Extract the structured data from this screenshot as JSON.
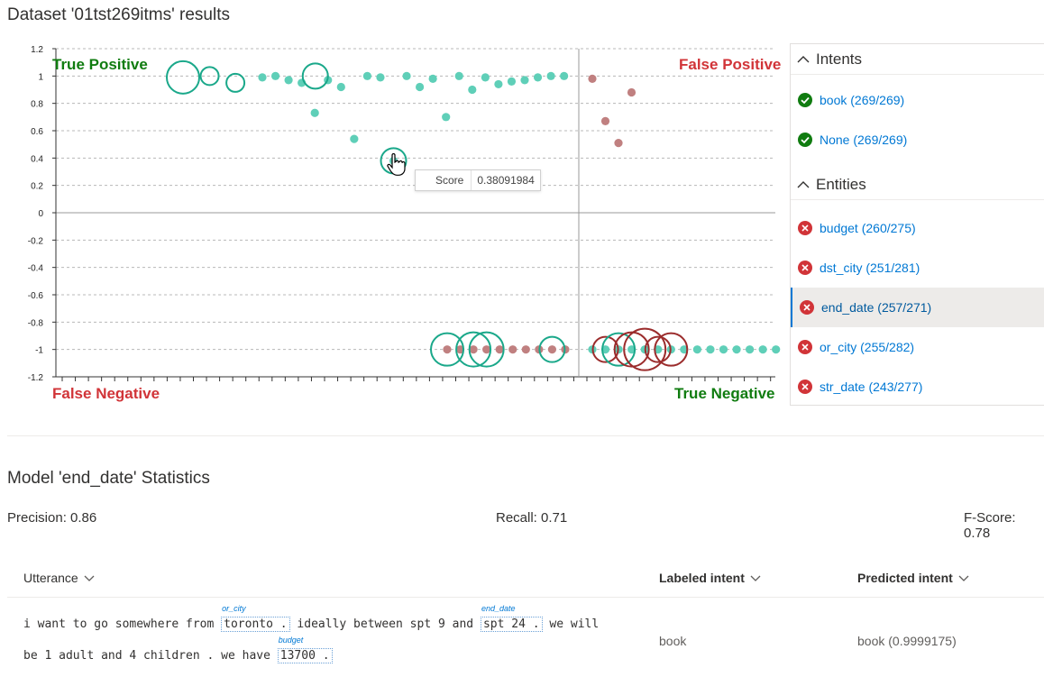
{
  "title": "Dataset '01tst269itms' results",
  "chart_data": {
    "type": "scatter",
    "title": "",
    "ylim": [
      -1.2,
      1.2
    ],
    "yticks": [
      "1.2",
      "1",
      "0.8",
      "0.6",
      "0.4",
      "0.2",
      "0",
      "-0.2",
      "-0.4",
      "-0.6",
      "-0.8",
      "-1",
      "-1.2"
    ],
    "grid": true,
    "colors": {
      "correct": "#5fcfb8",
      "wrong": "#c08080",
      "ring_correct": "#1aa88a",
      "ring_wrong": "#9b2c2c"
    },
    "quadrants": {
      "true_positive": "True Positive",
      "false_positive": "False Positive",
      "false_negative": "False Negative",
      "true_negative": "True Negative"
    },
    "dots": [
      {
        "x": 1,
        "y": 0.99,
        "c": "correct"
      },
      {
        "x": 2,
        "y": 1.0,
        "c": "correct"
      },
      {
        "x": 3,
        "y": 0.97,
        "c": "correct"
      },
      {
        "x": 4,
        "y": 0.95,
        "c": "correct"
      },
      {
        "x": 5,
        "y": 0.73,
        "c": "correct"
      },
      {
        "x": 6,
        "y": 0.97,
        "c": "correct"
      },
      {
        "x": 7,
        "y": 0.92,
        "c": "correct"
      },
      {
        "x": 8,
        "y": 0.54,
        "c": "correct"
      },
      {
        "x": 9,
        "y": 1.0,
        "c": "correct"
      },
      {
        "x": 10,
        "y": 0.99,
        "c": "correct"
      },
      {
        "x": 11,
        "y": 0.38,
        "c": "correct"
      },
      {
        "x": 12,
        "y": 1.0,
        "c": "correct"
      },
      {
        "x": 13,
        "y": 0.92,
        "c": "correct"
      },
      {
        "x": 14,
        "y": 0.98,
        "c": "correct"
      },
      {
        "x": 15,
        "y": 0.7,
        "c": "correct"
      },
      {
        "x": 16,
        "y": 1.0,
        "c": "correct"
      },
      {
        "x": 17,
        "y": 0.9,
        "c": "correct"
      },
      {
        "x": 18,
        "y": 0.99,
        "c": "correct"
      },
      {
        "x": 19,
        "y": 0.94,
        "c": "correct"
      },
      {
        "x": 20,
        "y": 0.96,
        "c": "correct"
      },
      {
        "x": 21,
        "y": 0.97,
        "c": "correct"
      },
      {
        "x": 22,
        "y": 0.99,
        "c": "correct"
      },
      {
        "x": 23,
        "y": 1.0,
        "c": "correct"
      },
      {
        "x": 24,
        "y": 1.0,
        "c": "correct"
      },
      {
        "x": 25,
        "y": 0.98,
        "c": "wrong"
      },
      {
        "x": 26,
        "y": 0.67,
        "c": "wrong"
      },
      {
        "x": 27,
        "y": 0.51,
        "c": "wrong"
      },
      {
        "x": 28,
        "y": 0.88,
        "c": "wrong"
      },
      {
        "x": 29,
        "y": -1,
        "c": "wrong"
      },
      {
        "x": 30,
        "y": -1,
        "c": "wrong"
      },
      {
        "x": 31,
        "y": -1,
        "c": "wrong"
      },
      {
        "x": 32,
        "y": -1,
        "c": "wrong"
      },
      {
        "x": 33,
        "y": -1,
        "c": "wrong"
      },
      {
        "x": 34,
        "y": -1,
        "c": "wrong"
      },
      {
        "x": 35,
        "y": -1,
        "c": "wrong"
      },
      {
        "x": 36,
        "y": -1,
        "c": "wrong"
      },
      {
        "x": 37,
        "y": -1,
        "c": "wrong"
      },
      {
        "x": 38,
        "y": -1,
        "c": "wrong"
      },
      {
        "x": 39,
        "y": -1,
        "c": "correct"
      },
      {
        "x": 40,
        "y": -1,
        "c": "correct"
      },
      {
        "x": 41,
        "y": -1,
        "c": "correct"
      },
      {
        "x": 42,
        "y": -1,
        "c": "correct"
      },
      {
        "x": 43,
        "y": -1,
        "c": "correct"
      },
      {
        "x": 44,
        "y": -1,
        "c": "correct"
      },
      {
        "x": 45,
        "y": -1,
        "c": "correct"
      },
      {
        "x": 46,
        "y": -1,
        "c": "correct"
      },
      {
        "x": 47,
        "y": -1,
        "c": "correct"
      },
      {
        "x": 48,
        "y": -1,
        "c": "correct"
      },
      {
        "x": 49,
        "y": -1,
        "c": "correct"
      },
      {
        "x": 50,
        "y": -1,
        "c": "correct"
      },
      {
        "x": 51,
        "y": -1,
        "c": "correct"
      },
      {
        "x": 52,
        "y": -1,
        "c": "correct"
      },
      {
        "x": 53,
        "y": -1,
        "c": "correct"
      }
    ],
    "rings": [
      {
        "x": 1,
        "y": 0.99,
        "r": "large",
        "c": "correct"
      },
      {
        "x": 2,
        "y": 1.0,
        "r": "small",
        "c": "correct"
      },
      {
        "x": 3,
        "y": 0.95,
        "r": "small",
        "c": "correct"
      },
      {
        "x": 6,
        "y": 1.0,
        "r": "medium",
        "c": "correct"
      },
      {
        "x": 11,
        "y": 0.38,
        "r": "medium",
        "c": "correct"
      },
      {
        "x": 29,
        "y": -1,
        "r": "large",
        "c": "correct"
      },
      {
        "x": 31,
        "y": -1,
        "r": "xlarge",
        "c": "correct"
      },
      {
        "x": 32,
        "y": -1,
        "r": "xlarge",
        "c": "correct"
      },
      {
        "x": 37,
        "y": -1,
        "r": "medium",
        "c": "correct"
      },
      {
        "x": 40,
        "y": -1,
        "r": "medium",
        "c": "wrong"
      },
      {
        "x": 41,
        "y": -1,
        "r": "large",
        "c": "correct"
      },
      {
        "x": 42,
        "y": -1,
        "r": "xlarge",
        "c": "wrong"
      },
      {
        "x": 43,
        "y": -1,
        "r": "xxlarge",
        "c": "wrong"
      },
      {
        "x": 44,
        "y": -1,
        "r": "medium",
        "c": "wrong"
      },
      {
        "x": 45,
        "y": -1,
        "r": "large",
        "c": "wrong"
      }
    ]
  },
  "tooltip": {
    "label": "Score",
    "value": "0.38091984"
  },
  "intents": {
    "heading": "Intents",
    "items": [
      {
        "label": "book (269/269)",
        "status": "check-icon"
      },
      {
        "label": "None (269/269)",
        "status": "check-icon"
      }
    ]
  },
  "entities": {
    "heading": "Entities",
    "items": [
      {
        "label": "budget (260/275)",
        "status": "error-icon"
      },
      {
        "label": "dst_city (251/281)",
        "status": "error-icon"
      },
      {
        "label": "end_date (257/271)",
        "status": "error-icon"
      },
      {
        "label": "or_city (255/282)",
        "status": "error-icon"
      },
      {
        "label": "str_date (243/277)",
        "status": "error-icon"
      }
    ]
  },
  "stats": {
    "title": "Model 'end_date' Statistics",
    "precision": "Precision: 0.86",
    "recall": "Recall: 0.71",
    "fscore": "F-Score: 0.78"
  },
  "table": {
    "col_utterance": "Utterance",
    "col_labeled": "Labeled intent",
    "col_predicted": "Predicted intent",
    "row": {
      "line1_a": "i want to go somewhere from ",
      "ent1": "toronto .",
      "ent1_tag": "or_city",
      "line1_b": " ideally between spt 9 and ",
      "ent2": "spt 24 .",
      "ent2_tag": "end_date",
      "line1_c": " we will",
      "line2_a": "be 1 adult and 4 children . we have ",
      "ent3": "13700 .",
      "ent3_tag": "budget",
      "labeled": "book",
      "predicted": "book (0.9999175)"
    }
  }
}
